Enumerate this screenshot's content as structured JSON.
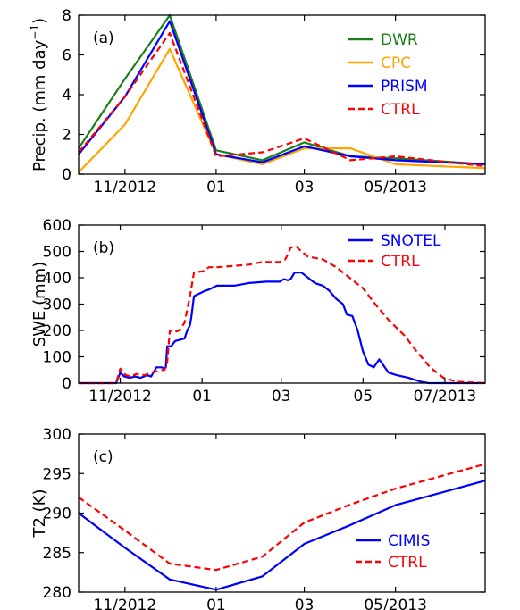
{
  "chart_data": [
    {
      "type": "line",
      "panel_label": "(a)",
      "ylabel": "Precip. (mm day",
      "ylabel_sup": "−1",
      "ylabel_end": ")",
      "ylim": [
        0,
        8
      ],
      "yticks": [
        "0",
        "2",
        "4",
        "6",
        "8"
      ],
      "xlim": [
        "2012-10-01",
        "2013-06-30"
      ],
      "xticks": [
        {
          "label": "11/2012",
          "date": "2012-11-01"
        },
        {
          "label": "01",
          "date": "2013-01-01"
        },
        {
          "label": "03",
          "date": "2013-03-01"
        },
        {
          "label": "05/2013",
          "date": "2013-05-01"
        }
      ],
      "legend_position": "top-right",
      "series": [
        {
          "name": "DWR",
          "color": "#1a7f1a",
          "dashed": false,
          "x": [
            "2012-10-01",
            "2012-11-01",
            "2012-12-01",
            "2013-01-01",
            "2013-02-01",
            "2013-03-01",
            "2013-04-01",
            "2013-05-01",
            "2013-06-30"
          ],
          "y": [
            1.3,
            4.8,
            8.0,
            1.2,
            0.7,
            1.6,
            0.9,
            0.8,
            0.5
          ]
        },
        {
          "name": "CPC",
          "color": "#ffa500",
          "dashed": false,
          "x": [
            "2012-10-01",
            "2012-11-01",
            "2012-12-01",
            "2013-01-01",
            "2013-02-01",
            "2013-03-01",
            "2013-04-01",
            "2013-05-01",
            "2013-06-30"
          ],
          "y": [
            0.1,
            2.5,
            6.3,
            1.0,
            0.5,
            1.3,
            1.3,
            0.5,
            0.3
          ]
        },
        {
          "name": "PRISM",
          "color": "#0000ff",
          "dashed": false,
          "x": [
            "2012-10-01",
            "2012-11-01",
            "2012-12-01",
            "2013-01-01",
            "2013-02-01",
            "2013-03-01",
            "2013-04-01",
            "2013-05-01",
            "2013-06-30"
          ],
          "y": [
            1.0,
            3.9,
            7.7,
            1.0,
            0.6,
            1.4,
            0.9,
            0.7,
            0.5
          ]
        },
        {
          "name": "CTRL",
          "color": "#ff0000",
          "dashed": true,
          "x": [
            "2012-10-01",
            "2012-11-01",
            "2012-12-01",
            "2013-01-01",
            "2013-02-01",
            "2013-03-01",
            "2013-04-01",
            "2013-05-01",
            "2013-06-30"
          ],
          "y": [
            1.1,
            3.9,
            7.1,
            0.9,
            1.1,
            1.8,
            0.7,
            0.9,
            0.4
          ]
        }
      ]
    },
    {
      "type": "line",
      "panel_label": "(b)",
      "ylabel": "SWE (mm)",
      "ylim": [
        0,
        600
      ],
      "yticks": [
        "0",
        "100",
        "200",
        "300",
        "400",
        "500",
        "600"
      ],
      "xlim": [
        "2012-10-01",
        "2013-07-31"
      ],
      "xticks": [
        {
          "label": "11/2012",
          "date": "2012-11-01"
        },
        {
          "label": "01",
          "date": "2013-01-01"
        },
        {
          "label": "03",
          "date": "2013-03-01"
        },
        {
          "label": "05",
          "date": "2013-05-01"
        },
        {
          "label": "07/2013",
          "date": "2013-07-01"
        }
      ],
      "legend_position": "top-right",
      "series": [
        {
          "name": "SNOTEL",
          "color": "#0000ff",
          "dashed": false,
          "x": [
            "2012-10-01",
            "2012-10-29",
            "2012-11-01",
            "2012-11-04",
            "2012-11-08",
            "2012-11-12",
            "2012-11-16",
            "2012-11-21",
            "2012-11-24",
            "2012-11-28",
            "2012-12-02",
            "2012-12-04",
            "2012-12-05",
            "2012-12-06",
            "2012-12-09",
            "2012-12-12",
            "2012-12-16",
            "2012-12-19",
            "2012-12-21",
            "2012-12-23",
            "2012-12-24",
            "2012-12-26",
            "2013-01-03",
            "2013-01-06",
            "2013-01-12",
            "2013-01-25",
            "2013-02-05",
            "2013-02-18",
            "2013-02-28",
            "2013-03-03",
            "2013-03-06",
            "2013-03-08",
            "2013-03-11",
            "2013-03-16",
            "2013-03-21",
            "2013-03-26",
            "2013-04-01",
            "2013-04-06",
            "2013-04-11",
            "2013-04-16",
            "2013-04-19",
            "2013-04-23",
            "2013-04-27",
            "2013-05-01",
            "2013-05-05",
            "2013-05-09",
            "2013-05-13",
            "2013-05-20",
            "2013-05-26",
            "2013-06-04",
            "2013-06-13",
            "2013-06-19",
            "2013-06-24",
            "2013-07-31"
          ],
          "y": [
            0,
            0,
            40,
            25,
            20,
            25,
            20,
            30,
            25,
            60,
            60,
            55,
            60,
            140,
            140,
            160,
            165,
            170,
            200,
            220,
            250,
            330,
            350,
            355,
            370,
            370,
            380,
            385,
            385,
            395,
            390,
            395,
            420,
            420,
            400,
            380,
            370,
            350,
            320,
            300,
            260,
            255,
            200,
            120,
            70,
            60,
            90,
            40,
            30,
            20,
            5,
            0,
            0,
            0
          ]
        },
        {
          "name": "CTRL",
          "color": "#ff0000",
          "dashed": true,
          "x": [
            "2012-10-01",
            "2012-10-29",
            "2012-11-01",
            "2012-11-05",
            "2012-11-09",
            "2012-11-13",
            "2012-11-19",
            "2012-11-24",
            "2012-11-29",
            "2012-12-02",
            "2012-12-04",
            "2012-12-06",
            "2012-12-08",
            "2012-12-12",
            "2012-12-15",
            "2012-12-19",
            "2012-12-21",
            "2012-12-23",
            "2012-12-26",
            "2013-01-02",
            "2013-01-06",
            "2013-01-12",
            "2013-01-25",
            "2013-02-05",
            "2013-02-15",
            "2013-02-28",
            "2013-03-04",
            "2013-03-06",
            "2013-03-08",
            "2013-03-12",
            "2013-03-16",
            "2013-03-21",
            "2013-04-01",
            "2013-04-11",
            "2013-04-21",
            "2013-05-01",
            "2013-05-10",
            "2013-05-20",
            "2013-06-01",
            "2013-06-10",
            "2013-06-20",
            "2013-06-30",
            "2013-07-10",
            "2013-07-31"
          ],
          "y": [
            0,
            0,
            55,
            30,
            25,
            35,
            30,
            40,
            45,
            50,
            50,
            80,
            200,
            195,
            200,
            230,
            280,
            330,
            420,
            425,
            440,
            440,
            445,
            450,
            460,
            460,
            470,
            490,
            515,
            520,
            500,
            480,
            470,
            440,
            400,
            360,
            300,
            240,
            180,
            120,
            60,
            20,
            5,
            0
          ]
        }
      ]
    },
    {
      "type": "line",
      "panel_label": "(c)",
      "ylabel": "T2 (K)",
      "ylim": [
        280,
        300
      ],
      "yticks": [
        "280",
        "285",
        "290",
        "295",
        "300"
      ],
      "xlim": [
        "2012-10-01",
        "2013-06-30"
      ],
      "xticks": [
        {
          "label": "11/2012",
          "date": "2012-11-01"
        },
        {
          "label": "01",
          "date": "2013-01-01"
        },
        {
          "label": "03",
          "date": "2013-03-01"
        },
        {
          "label": "05/2013",
          "date": "2013-05-01"
        }
      ],
      "legend_position": "bottom-right",
      "series": [
        {
          "name": "CIMIS",
          "color": "#0000ff",
          "dashed": false,
          "x": [
            "2012-10-01",
            "2012-11-01",
            "2012-12-01",
            "2013-01-01",
            "2013-02-01",
            "2013-03-01",
            "2013-04-01",
            "2013-05-01",
            "2013-06-30"
          ],
          "y": [
            290.0,
            285.6,
            281.6,
            280.3,
            282.0,
            286.1,
            288.5,
            291.0,
            294.1
          ]
        },
        {
          "name": "CTRL",
          "color": "#ff0000",
          "dashed": true,
          "x": [
            "2012-10-01",
            "2012-11-01",
            "2012-12-01",
            "2013-01-01",
            "2013-02-01",
            "2013-03-01",
            "2013-04-01",
            "2013-05-01",
            "2013-06-30"
          ],
          "y": [
            292.0,
            287.8,
            283.6,
            282.8,
            284.5,
            288.8,
            291.1,
            293.1,
            296.2
          ]
        }
      ]
    }
  ]
}
